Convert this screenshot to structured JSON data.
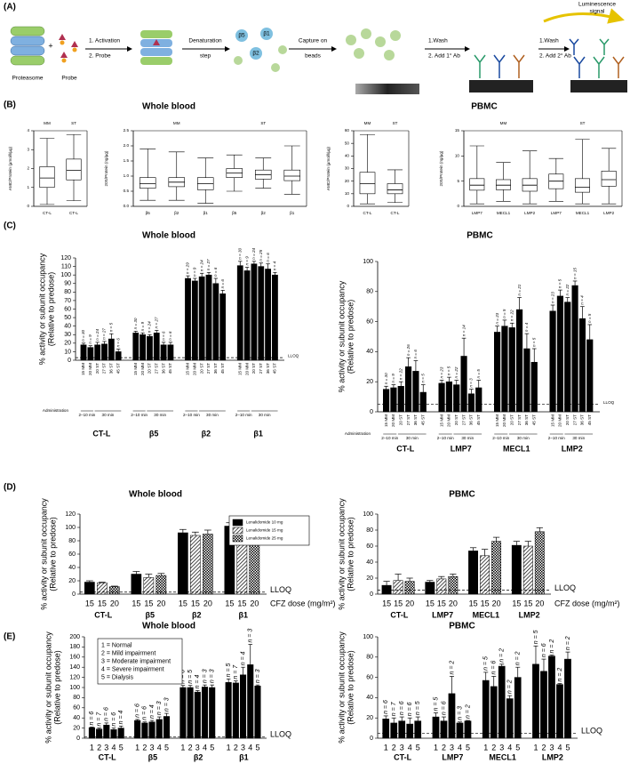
{
  "diagram": {
    "panel": "(A)",
    "proteasome": "Proteasome",
    "probe": "Probe",
    "step1": [
      "1. Activation",
      "2. Probe"
    ],
    "denaturation": [
      "Denaturation",
      "step"
    ],
    "capture": [
      "Capture on",
      "beads"
    ],
    "wash1": [
      "1.Wash",
      "2. Add 1° Ab"
    ],
    "wash2": [
      "1.Wash",
      "2. Add 2° Ab"
    ],
    "signal": [
      "Luminescence",
      "signal"
    ],
    "subunits": [
      "β5",
      "β1",
      "β2"
    ]
  },
  "chart_data": [
    {
      "type": "box",
      "panel": "(B)",
      "title": "Whole blood",
      "ylabel": "AMC/Protein (µmol/l/µg)",
      "categories": [
        "CT-L"
      ],
      "ylim": [
        0,
        4
      ],
      "yticks": [
        0,
        1,
        2,
        3,
        4
      ],
      "frame": true,
      "series": [
        {
          "name": "MM",
          "min": [
            0.1
          ],
          "q1": [
            1.0
          ],
          "median": [
            1.5
          ],
          "q3": [
            2.1
          ],
          "max": [
            3.6
          ]
        },
        {
          "name": "ST",
          "min": [
            0.3
          ],
          "q1": [
            1.4
          ],
          "median": [
            1.9
          ],
          "q3": [
            2.5
          ],
          "max": [
            3.8
          ]
        }
      ]
    },
    {
      "type": "box",
      "ylabel": "20S/Protein (ng/µg)",
      "categories": [
        "β5",
        "β2",
        "β1"
      ],
      "ylim": [
        0,
        2.5
      ],
      "frame": true,
      "yticks": [
        {
          "value": 0,
          "label": "0.0"
        },
        {
          "value": 0.5,
          "label": "0.5"
        },
        {
          "value": 1,
          "label": "1.0"
        },
        {
          "value": 1.5,
          "label": "1.5"
        },
        {
          "value": 2,
          "label": "2.0"
        },
        {
          "value": 2.5,
          "label": "2.5"
        }
      ],
      "series": [
        {
          "name": "MM",
          "min": [
            0.2,
            0.2,
            0.1
          ],
          "q1": [
            0.6,
            0.65,
            0.55
          ],
          "median": [
            0.75,
            0.8,
            0.75
          ],
          "q3": [
            0.95,
            0.95,
            0.95
          ],
          "max": [
            1.9,
            1.8,
            1.6
          ]
        },
        {
          "name": "ST",
          "min": [
            0.5,
            0.6,
            0.4
          ],
          "q1": [
            0.95,
            0.9,
            0.85
          ],
          "median": [
            1.1,
            1.05,
            1.0
          ],
          "q3": [
            1.25,
            1.2,
            1.2
          ],
          "max": [
            1.7,
            1.6,
            2.0
          ]
        }
      ]
    },
    {
      "type": "box",
      "title": "PBMC",
      "ylabel": "AMC/Protein (µmol/l/µg)",
      "categories": [
        "CT-L"
      ],
      "ylim": [
        0,
        60
      ],
      "yticks": [
        0,
        10,
        20,
        30,
        40,
        50,
        60
      ],
      "frame": true,
      "series": [
        {
          "name": "MM",
          "min": [
            2
          ],
          "q1": [
            10
          ],
          "median": [
            18
          ],
          "q3": [
            27
          ],
          "max": [
            57
          ]
        },
        {
          "name": "ST",
          "min": [
            3
          ],
          "q1": [
            10
          ],
          "median": [
            13
          ],
          "q3": [
            18
          ],
          "max": [
            29
          ]
        }
      ]
    },
    {
      "type": "box",
      "ylabel": "20S/Protein (ng/µg)",
      "categories": [
        "LMP7",
        "MECL1",
        "LMP2"
      ],
      "ylim": [
        0,
        15
      ],
      "yticks": [
        0,
        5,
        10,
        15
      ],
      "frame": true,
      "series": [
        {
          "name": "MM",
          "min": [
            0.5,
            1,
            0.5
          ],
          "q1": [
            3.2,
            3.3,
            3
          ],
          "median": [
            4.2,
            4.2,
            4.2
          ],
          "q3": [
            5.5,
            5.3,
            5.5
          ],
          "max": [
            12,
            8.7,
            11
          ]
        },
        {
          "name": "ST",
          "min": [
            1,
            0.5,
            0.5
          ],
          "q1": [
            3.5,
            2.8,
            4
          ],
          "median": [
            5,
            3.8,
            5.3
          ],
          "q3": [
            6.4,
            5.5,
            7
          ],
          "max": [
            9.5,
            13.3,
            11.5
          ]
        }
      ]
    },
    {
      "type": "bar",
      "panel": "(C)",
      "title": "Whole blood",
      "ylabel": [
        "% activity or subunit occupancy",
        "(Relative to predose)"
      ],
      "categories": [
        "CT-L",
        "β5",
        "β2",
        "β1"
      ],
      "ylim": [
        0,
        120
      ],
      "yticks": [
        0,
        10,
        20,
        30,
        40,
        50,
        60,
        70,
        80,
        90,
        100,
        110,
        120
      ],
      "lloq": 3,
      "lloq_label": "LLOQ",
      "administration": {
        "label": "Administration",
        "periods": [
          "2–10 min",
          "30 min"
        ]
      },
      "series": [
        {
          "name": "15 MM",
          "color": "#000000",
          "pattern": "solid",
          "values": [
            18,
            32,
            96,
            111
          ],
          "errors": [
            2,
            2,
            3,
            5
          ],
          "n_labels": [
            "n = 30",
            "n = 30",
            "n = 29",
            "n = 30"
          ]
        },
        {
          "name": "20 MM",
          "color": "#000000",
          "pattern": "solid",
          "values": [
            15,
            30,
            93,
            105
          ],
          "errors": [
            2,
            2,
            3,
            4
          ],
          "n_labels": [
            "n = 9",
            "n = 9",
            "n = 9",
            "n = 9"
          ]
        },
        {
          "name": "20 ST",
          "color": "#000000",
          "pattern": "solid",
          "values": [
            18,
            28,
            98,
            113
          ],
          "errors": [
            3,
            2,
            4,
            3
          ],
          "n_labels": [
            "n = 24",
            "n = 24",
            "n = 24",
            "n = 24"
          ]
        },
        {
          "name": "27 ST",
          "color": "#000000",
          "pattern": "solid",
          "values": [
            19,
            32,
            100,
            110
          ],
          "errors": [
            3,
            3,
            3,
            4
          ],
          "n_labels": [
            "n = 27",
            "n = 27",
            "n = 27",
            "n = 25"
          ]
        },
        {
          "name": "36 ST",
          "color": "#000000",
          "pattern": "solid",
          "values": [
            25,
            18,
            90,
            107
          ],
          "errors": [
            6,
            3,
            6,
            6
          ],
          "n_labels": [
            "n = 5",
            "n = 6",
            "n = 6",
            "n = 6"
          ]
        },
        {
          "name": "45 ST",
          "color": "#000000",
          "pattern": "solid",
          "values": [
            10,
            18,
            78,
            100
          ],
          "errors": [
            3,
            3,
            4,
            3
          ],
          "n_labels": [
            "n = 6",
            "n = 6",
            "n = 6",
            "n = 4"
          ]
        }
      ]
    },
    {
      "type": "bar",
      "title": "PBMC",
      "ylabel": [
        "% activity or subunit occupancy",
        "(Relative to predose)"
      ],
      "categories": [
        "CT-L",
        "LMP7",
        "MECL1",
        "LMP2"
      ],
      "ylim": [
        0,
        100
      ],
      "yticks": [
        0,
        20,
        40,
        60,
        80,
        100
      ],
      "lloq": 5,
      "lloq_label": "LLOQ",
      "administration": {
        "label": "Administration",
        "periods": [
          "2–10 min",
          "30 min"
        ]
      },
      "series": [
        {
          "name": "15 MM",
          "color": "#000000",
          "pattern": "solid",
          "values": [
            15,
            19,
            53,
            67
          ],
          "errors": [
            2,
            2,
            4,
            4
          ],
          "n_labels": [
            "n = 30",
            "n = 23",
            "n = 23",
            "n = 23"
          ]
        },
        {
          "name": "20 MM",
          "color": "#000000",
          "pattern": "solid",
          "values": [
            16,
            20,
            57,
            77
          ],
          "errors": [
            2,
            3,
            4,
            4
          ],
          "n_labels": [
            "n = 9",
            "n = 5",
            "n = 5",
            "n = 5"
          ]
        },
        {
          "name": "20 ST",
          "color": "#000000",
          "pattern": "solid",
          "values": [
            17,
            18,
            56,
            73
          ],
          "errors": [
            3,
            3,
            3,
            3
          ],
          "n_labels": [
            "n = 22",
            "n = 22",
            "n = 22",
            "n = 22"
          ]
        },
        {
          "name": "27 ST",
          "color": "#000000",
          "pattern": "solid",
          "values": [
            30,
            37,
            68,
            84
          ],
          "errors": [
            6,
            12,
            8,
            3
          ],
          "n_labels": [
            "n = 26",
            "n = 14",
            "n = 21",
            "n = 15"
          ]
        },
        {
          "name": "36 ST",
          "color": "#000000",
          "pattern": "solid",
          "values": [
            27,
            12,
            42,
            62
          ],
          "errors": [
            7,
            3,
            10,
            8
          ],
          "n_labels": [
            "n = 6",
            "n = 3",
            "n = 4",
            "n = 4"
          ]
        },
        {
          "name": "45 ST",
          "color": "#000000",
          "pattern": "solid",
          "values": [
            13,
            16,
            33,
            48
          ],
          "errors": [
            5,
            5,
            9,
            10
          ],
          "n_labels": [
            "n = 5",
            "n = 5",
            "n = 5",
            "n = 5"
          ]
        }
      ]
    },
    {
      "type": "bar",
      "panel": "(D)",
      "title": "Whole blood",
      "ylabel": [
        "% activity or subunit occupancy",
        "(Relative to predose)"
      ],
      "categories": [
        "CT-L",
        "β5",
        "β2",
        "β1"
      ],
      "ylim": [
        0,
        120
      ],
      "yticks": [
        0,
        20,
        40,
        60,
        80,
        100,
        120
      ],
      "lloq": 3,
      "lloq_label": "LLOQ",
      "bar_labels": [
        "15",
        "15",
        "20"
      ],
      "x_label": "CFZ dose (mg/m²)",
      "legend": "upper right",
      "legend_swatches": true,
      "series": [
        {
          "name": "Lenalidomide 10 mg",
          "color": "#000000",
          "pattern": "solid",
          "values": [
            18,
            30,
            92,
            102
          ],
          "errors": [
            2,
            4,
            5,
            5
          ]
        },
        {
          "name": "Lenalidomide 15 mg",
          "color": "#000000",
          "pattern": "hatch",
          "values": [
            17,
            25,
            88,
            95
          ],
          "errors": [
            1,
            5,
            5,
            5
          ]
        },
        {
          "name": "Lenalidomide 25 mg",
          "color": "#000000",
          "pattern": "check",
          "values": [
            11,
            28,
            90,
            97
          ],
          "errors": [
            1,
            3,
            6,
            4
          ]
        }
      ]
    },
    {
      "type": "bar",
      "title": "PBMC",
      "ylabel": [
        "% activity or subunit occupancy",
        "(Relative to predose)"
      ],
      "categories": [
        "CT-L",
        "LMP7",
        "MECL1",
        "LMP2"
      ],
      "ylim": [
        0,
        100
      ],
      "yticks": [
        0,
        20,
        40,
        60,
        80,
        100
      ],
      "lloq": 5,
      "lloq_label": "LLOQ",
      "bar_labels": [
        "15",
        "15",
        "20"
      ],
      "x_label": "CFZ dose (mg/m²)",
      "series": [
        {
          "color": "#000000",
          "pattern": "solid",
          "values": [
            11,
            15,
            54,
            61
          ],
          "errors": [
            5,
            2,
            4,
            5
          ]
        },
        {
          "color": "#000000",
          "pattern": "hatch",
          "values": [
            17,
            19,
            48,
            60
          ],
          "errors": [
            8,
            3,
            8,
            6
          ]
        },
        {
          "color": "#000000",
          "pattern": "check",
          "values": [
            16,
            22,
            66,
            78
          ],
          "errors": [
            4,
            3,
            5,
            5
          ]
        }
      ]
    },
    {
      "type": "bar",
      "panel": "(E)",
      "title": "Whole blood",
      "ylabel": [
        "% activity or subunit occupancy",
        "(Relative to predose)"
      ],
      "categories": [
        "CT-L",
        "β5",
        "β2",
        "β1"
      ],
      "ylim": [
        0,
        200
      ],
      "yticks": [
        0,
        20,
        40,
        60,
        80,
        100,
        120,
        140,
        160,
        180,
        200
      ],
      "lloq": 3,
      "lloq_label": "LLOQ",
      "bar_labels": [
        "1",
        "2",
        "3",
        "4",
        "5"
      ],
      "legend": "upper left",
      "legend_swatches": false,
      "series": [
        {
          "name": "1 = Normal",
          "color": "#000000",
          "pattern": "solid",
          "values": [
            21,
            35,
            100,
            110
          ],
          "errors": [
            1,
            2,
            4,
            7
          ],
          "n_labels": [
            "n = 6",
            "n = 6",
            "n = 6",
            "n = 5"
          ]
        },
        {
          "name": "2 = Mild impairment",
          "color": "#000000",
          "pattern": "solid",
          "values": [
            18,
            30,
            100,
            109
          ],
          "errors": [
            2,
            2,
            4,
            4
          ],
          "n_labels": [
            "n = 7",
            "n = 6",
            "n = 5",
            "n = 7"
          ]
        },
        {
          "name": "3 = Moderate impairment",
          "color": "#000000",
          "pattern": "solid",
          "values": [
            26,
            32,
            91,
            125
          ],
          "errors": [
            4,
            3,
            3,
            15
          ],
          "n_labels": [
            "n = 6",
            "n = 4",
            "n = 4",
            "n = 4"
          ]
        },
        {
          "name": "4 = Severe impairment",
          "color": "#000000",
          "pattern": "solid",
          "values": [
            17,
            37,
            101,
            145
          ],
          "errors": [
            3,
            5,
            4,
            40
          ],
          "n_labels": [
            "n = 6",
            "n = 3",
            "n = 3",
            "n = 3"
          ]
        },
        {
          "name": "5 = Dialysis",
          "color": "#000000",
          "pattern": "solid",
          "values": [
            20,
            43,
            100,
            103
          ],
          "errors": [
            4,
            6,
            5,
            2
          ],
          "n_labels": [
            "n = 4",
            "n = 3",
            "n = 3",
            "n = 3"
          ]
        }
      ]
    },
    {
      "type": "bar",
      "title": "PBMC",
      "ylabel": [
        "% activity or subunit occupancy",
        "(Relative to predose)"
      ],
      "categories": [
        "CT-L",
        "LMP7",
        "MECL1",
        "LMP2"
      ],
      "ylim": [
        0,
        100
      ],
      "yticks": [
        0,
        20,
        40,
        60,
        80,
        100
      ],
      "lloq": 5,
      "lloq_label": "LLOQ",
      "bar_labels": [
        "1",
        "2",
        "3",
        "4",
        "5"
      ],
      "series": [
        {
          "color": "#000000",
          "pattern": "solid",
          "values": [
            19,
            21,
            57,
            73
          ],
          "errors": [
            3,
            4,
            8,
            18
          ],
          "n_labels": [
            "n = 6",
            "n = 5",
            "n = 5",
            "n = 5"
          ]
        },
        {
          "color": "#000000",
          "pattern": "solid",
          "values": [
            15,
            17,
            51,
            66
          ],
          "errors": [
            5,
            4,
            10,
            12
          ],
          "n_labels": [
            "n = 7",
            "n = 6",
            "n = 6",
            "n = 6"
          ]
        },
        {
          "color": "#000000",
          "pattern": "solid",
          "values": [
            17,
            44,
            71,
            81
          ],
          "errors": [
            4,
            17,
            2,
            1
          ],
          "n_labels": [
            "n = 6",
            "n = 2",
            "n = 2",
            "n = 2"
          ]
        },
        {
          "color": "#000000",
          "pattern": "solid",
          "values": [
            14,
            15,
            39,
            53
          ],
          "errors": [
            6,
            1,
            3,
            1
          ],
          "n_labels": [
            "n = 6",
            "n = 3",
            "n = 2",
            "n = 2"
          ]
        },
        {
          "color": "#000000",
          "pattern": "solid",
          "values": [
            17,
            17,
            60,
            78
          ],
          "errors": [
            4,
            0.5,
            10,
            7
          ],
          "n_labels": [
            "n = 5",
            "n = 2",
            "n = 2",
            "n = 2"
          ]
        }
      ]
    }
  ]
}
